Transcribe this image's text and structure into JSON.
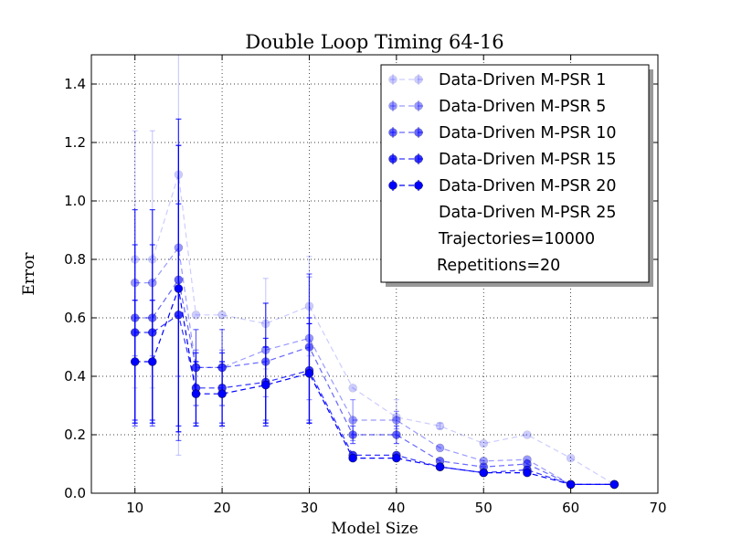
{
  "chart_data": {
    "type": "line",
    "title": "Double Loop Timing 64-16",
    "xlabel": "Model Size",
    "ylabel": "Error",
    "xlim": [
      5,
      70
    ],
    "ylim": [
      0,
      1.5
    ],
    "xticks": [
      10,
      20,
      30,
      40,
      50,
      60,
      70
    ],
    "yticks": [
      0.0,
      0.2,
      0.4,
      0.6,
      0.8,
      1.0,
      1.2,
      1.4
    ],
    "grid": true,
    "legend_position": "top-right",
    "x": [
      10,
      12,
      15,
      17,
      20,
      25,
      30,
      35,
      40,
      45,
      50,
      55,
      60,
      65
    ],
    "series": [
      {
        "name": "Data-Driven M-PSR 1",
        "color": "#0000ff",
        "alpha": 0.2,
        "values": [
          0.8,
          0.8,
          1.09,
          0.61,
          0.61,
          0.58,
          0.64,
          0.36,
          0.26,
          0.23,
          0.17,
          0.2,
          0.12,
          0.03
        ],
        "errors": [
          0.44,
          0.44,
          0.96,
          0.0,
          0.0,
          0.155,
          0.17,
          0.0,
          0.06,
          0.01,
          0.0,
          0.0,
          0.0,
          0.0
        ]
      },
      {
        "name": "Data-Driven M-PSR 5",
        "color": "#0000ff",
        "alpha": 0.4,
        "values": [
          0.72,
          0.72,
          0.84,
          0.43,
          0.43,
          0.49,
          0.53,
          0.25,
          0.25,
          0.155,
          0.11,
          0.115,
          0.03,
          0.03
        ],
        "errors": [
          0.25,
          0.25,
          0.44,
          0.06,
          0.06,
          0.16,
          0.21,
          0.07,
          0.03,
          0.0,
          0.0,
          0.0,
          0.0,
          0.0
        ]
      },
      {
        "name": "Data-Driven M-PSR 10",
        "color": "#0000ff",
        "alpha": 0.6,
        "values": [
          0.6,
          0.6,
          0.73,
          0.43,
          0.43,
          0.45,
          0.5,
          0.2,
          0.2,
          0.11,
          0.09,
          0.1,
          0.03,
          0.03
        ],
        "errors": [
          0.37,
          0.37,
          0.55,
          0.13,
          0.13,
          0.2,
          0.25,
          0.03,
          0.03,
          0.0,
          0.0,
          0.0,
          0.0,
          0.0
        ]
      },
      {
        "name": "Data-Driven M-PSR 15",
        "color": "#0000ff",
        "alpha": 0.8,
        "values": [
          0.55,
          0.55,
          0.61,
          0.36,
          0.36,
          0.38,
          0.42,
          0.13,
          0.13,
          0.09,
          0.07,
          0.08,
          0.03,
          0.03
        ],
        "errors": [
          0.3,
          0.3,
          0.38,
          0.12,
          0.12,
          0.15,
          0.18,
          0.0,
          0.0,
          0.0,
          0.0,
          0.0,
          0.0,
          0.0
        ]
      },
      {
        "name": "Data-Driven M-PSR 20",
        "color": "#0000ff",
        "alpha": 1.0,
        "values": [
          0.45,
          0.45,
          0.7,
          0.34,
          0.34,
          0.37,
          0.41,
          0.12,
          0.12,
          0.09,
          0.07,
          0.07,
          0.03,
          0.03
        ],
        "errors": [
          0.21,
          0.21,
          0.49,
          0.11,
          0.11,
          0.13,
          0.17,
          0.0,
          0.0,
          0.0,
          0.0,
          0.0,
          0.0,
          0.0
        ]
      }
    ],
    "legend_entries": [
      "Data-Driven M-PSR 1",
      "Data-Driven M-PSR 5",
      "Data-Driven M-PSR 10",
      "Data-Driven M-PSR 15",
      "Data-Driven M-PSR 20",
      "Data-Driven M-PSR 25",
      "Trajectories=10000",
      "Repetitions=20"
    ]
  }
}
